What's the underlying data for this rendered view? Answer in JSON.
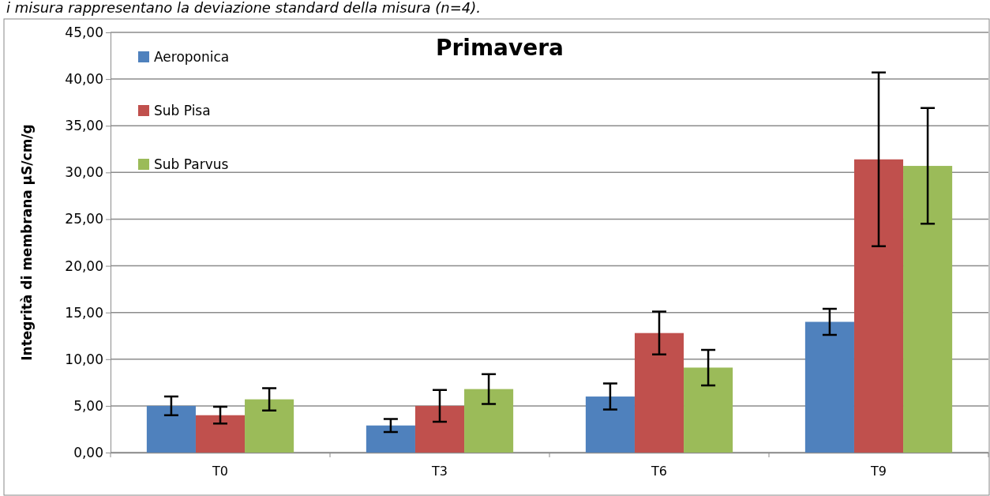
{
  "chart_data": {
    "type": "bar",
    "title": "Primavera",
    "ylabel": "Integrità di membrana µS/cm/g",
    "annotations": [
      "i misura rappresentano la deviazione standard della misura (n=4)."
    ],
    "categories": [
      "T0",
      "T3",
      "T6",
      "T9"
    ],
    "series": [
      {
        "name": "Aeroponica",
        "color": "#4f81bd",
        "values": [
          5.0,
          2.9,
          6.0,
          14.0
        ],
        "errors": [
          1.0,
          0.7,
          1.4,
          1.4
        ]
      },
      {
        "name": "Sub Pisa",
        "color": "#c0504d",
        "values": [
          4.0,
          5.0,
          12.8,
          31.4
        ],
        "errors": [
          0.9,
          1.7,
          2.3,
          9.3
        ]
      },
      {
        "name": "Sub Parvus",
        "color": "#9bbb59",
        "values": [
          5.7,
          6.8,
          9.1,
          30.7
        ],
        "errors": [
          1.2,
          1.6,
          1.9,
          6.2
        ]
      }
    ],
    "ylim": [
      0,
      45
    ],
    "yticks": [
      {
        "value": 0,
        "label": "0,00"
      },
      {
        "value": 5,
        "label": "5,00"
      },
      {
        "value": 10,
        "label": "10,00"
      },
      {
        "value": 15,
        "label": "15,00"
      },
      {
        "value": 20,
        "label": "20,00"
      },
      {
        "value": 25,
        "label": "25,00"
      },
      {
        "value": 30,
        "label": "30,00"
      },
      {
        "value": 35,
        "label": "35,00"
      },
      {
        "value": 40,
        "label": "40,00"
      },
      {
        "value": 45,
        "label": "45,00"
      }
    ],
    "grid": "y",
    "legend": "top left"
  }
}
